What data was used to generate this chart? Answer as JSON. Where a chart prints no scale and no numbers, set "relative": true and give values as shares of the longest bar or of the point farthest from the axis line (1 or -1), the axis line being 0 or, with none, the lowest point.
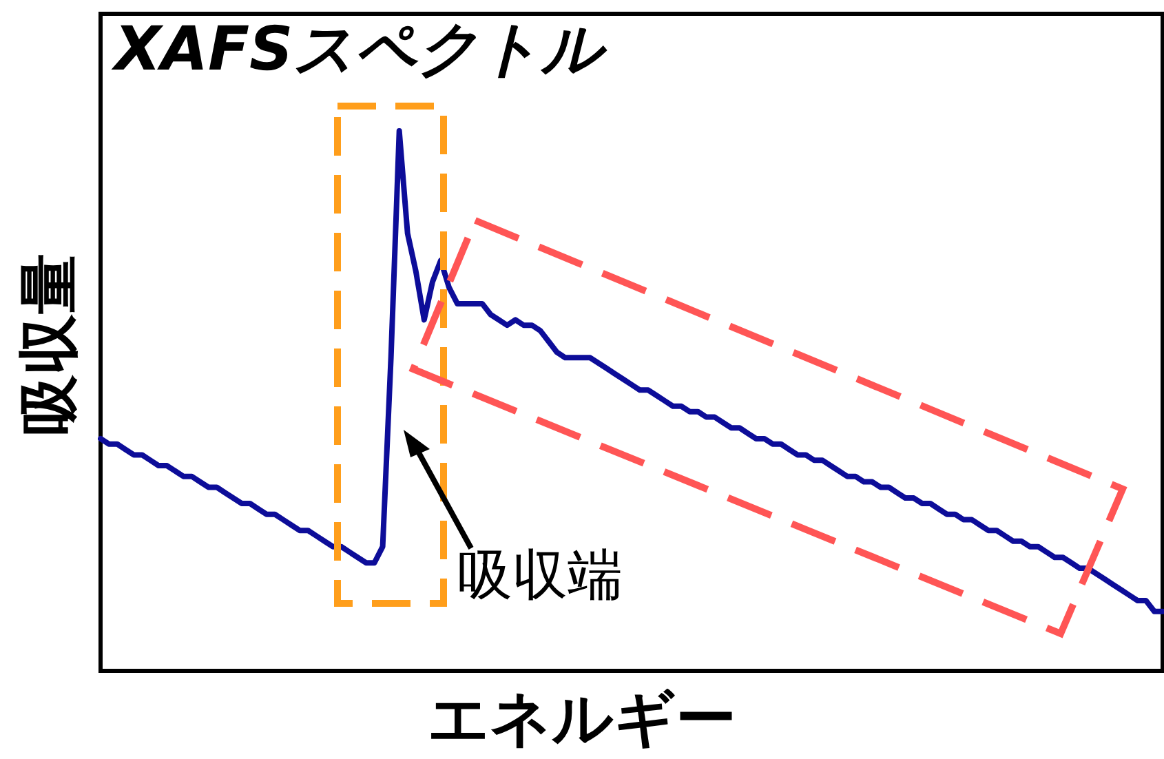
{
  "chart_data": {
    "type": "line",
    "title": "XAFSスペクトル",
    "xlabel": "エネルギー",
    "ylabel": "吸収量",
    "annotations": [
      "吸収端"
    ],
    "relative": true,
    "line_style": "solid",
    "color": "#0d0d99",
    "categories": [
      null,
      null,
      null,
      null,
      null,
      null,
      null,
      null,
      null,
      null,
      null,
      null,
      null,
      null,
      null,
      null,
      null,
      null,
      null,
      null,
      null,
      null,
      null,
      null,
      null,
      null,
      null,
      null,
      null,
      null,
      null,
      null,
      null,
      null,
      null,
      null,
      null,
      null,
      null,
      null,
      null,
      null,
      null,
      null,
      null,
      null,
      null,
      null,
      null,
      null,
      null,
      null,
      null,
      null,
      null,
      null,
      null,
      null,
      null,
      null,
      null,
      null,
      null,
      null,
      null,
      null,
      null,
      null,
      null,
      null,
      null,
      null,
      null,
      null,
      null,
      null,
      null,
      null,
      null,
      null,
      null,
      null,
      null,
      null,
      null,
      null,
      null,
      null,
      null,
      null,
      null,
      null,
      null,
      null,
      null,
      null,
      null,
      null,
      null,
      null,
      null,
      null,
      null,
      null,
      null,
      null,
      null,
      null,
      null,
      null,
      null,
      null,
      null,
      null,
      null,
      null,
      null,
      null,
      null,
      null,
      null,
      null,
      null,
      null,
      null,
      null,
      null,
      null,
      null
    ],
    "values": [
      0.43,
      0.42,
      0.42,
      0.41,
      0.4,
      0.4,
      0.39,
      0.38,
      0.38,
      0.37,
      0.36,
      0.36,
      0.35,
      0.34,
      0.34,
      0.33,
      0.32,
      0.31,
      0.31,
      0.3,
      0.29,
      0.29,
      0.28,
      0.27,
      0.26,
      0.26,
      0.25,
      0.24,
      0.23,
      0.23,
      0.22,
      0.21,
      0.2,
      0.2,
      0.23,
      0.58,
      1,
      0.81,
      0.74,
      0.65,
      0.72,
      0.76,
      0.71,
      0.68,
      0.68,
      0.68,
      0.68,
      0.66,
      0.65,
      0.64,
      0.65,
      0.64,
      0.64,
      0.63,
      0.61,
      0.59,
      0.58,
      0.58,
      0.58,
      0.58,
      0.57,
      0.56,
      0.55,
      0.54,
      0.53,
      0.52,
      0.52,
      0.51,
      0.5,
      0.49,
      0.49,
      0.48,
      0.48,
      0.47,
      0.47,
      0.46,
      0.45,
      0.45,
      0.44,
      0.43,
      0.43,
      0.42,
      0.42,
      0.41,
      0.4,
      0.4,
      0.39,
      0.39,
      0.38,
      0.37,
      0.36,
      0.36,
      0.35,
      0.35,
      0.34,
      0.34,
      0.33,
      0.32,
      0.32,
      0.31,
      0.31,
      0.3,
      0.29,
      0.29,
      0.28,
      0.28,
      0.27,
      0.26,
      0.26,
      0.25,
      0.24,
      0.24,
      0.23,
      0.23,
      0.22,
      0.21,
      0.21,
      0.2,
      0.19,
      0.19,
      0.18,
      0.17,
      0.16,
      0.15,
      0.14,
      0.13,
      0.13,
      0.11,
      0.11
    ]
  }
}
